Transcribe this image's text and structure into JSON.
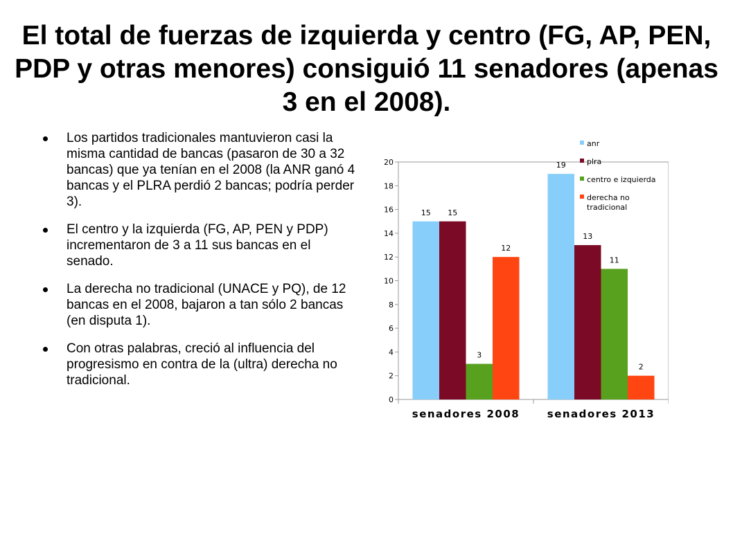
{
  "slide": {
    "title": "El total de fuerzas de izquierda y centro (FG, AP, PEN, PDP y otras menores) consiguió 11 senadores (apenas 3 en el 2008).",
    "bullets": [
      "Los partidos tradicionales mantuvieron casi la misma cantidad de bancas (pasaron de 30 a 32 bancas) que ya tenían en el 2008 (la ANR ganó 4 bancas y el PLRA perdió 2 bancas; podría perder 3).",
      "El centro y la izquierda (FG, AP, PEN y PDP) incrementaron de 3 a 11 sus bancas en el senado.",
      "La derecha no tradicional (UNACE y PQ), de 12 bancas en el 2008, bajaron a tan sólo 2 bancas (en disputa 1).",
      "Con otras palabras, creció al influencia del progresismo en contra de la (ultra) derecha no tradicional."
    ]
  },
  "chart_data": {
    "type": "bar",
    "categories": [
      "senadores 2008",
      "senadores 2013"
    ],
    "series": [
      {
        "name": "anr",
        "values": [
          15,
          19
        ],
        "color": "#87CEFA"
      },
      {
        "name": "plra",
        "values": [
          15,
          13
        ],
        "color": "#7B0A26"
      },
      {
        "name": "centro e izquierda",
        "values": [
          3,
          11
        ],
        "color": "#57A11E"
      },
      {
        "name": "derecha no tradicional",
        "values": [
          12,
          2
        ],
        "color": "#FF4512"
      }
    ],
    "data_labels": [
      [
        "15",
        "19"
      ],
      [
        "15",
        "13"
      ],
      [
        "3",
        "11"
      ],
      [
        "12",
        "2"
      ]
    ],
    "yticks": [
      "0",
      "2",
      "4",
      "6",
      "8",
      "10",
      "12",
      "14",
      "16",
      "18",
      "20"
    ],
    "ylim": [
      0,
      20
    ],
    "grid": false,
    "legend": "top-right"
  }
}
